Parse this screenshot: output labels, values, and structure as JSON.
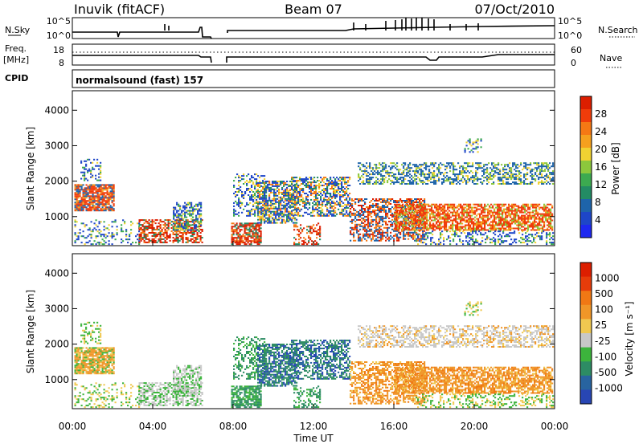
{
  "header": {
    "station": "Inuvik (fitACF)",
    "beam": "Beam 07",
    "date": "07/Oct/2010"
  },
  "strips": {
    "nsky_label": "N.Sky",
    "nsky_ticks": [
      "10^5",
      "10^0"
    ],
    "nsearch_label": "N.Search",
    "nsearch_ticks": [
      "10^5",
      "10^0"
    ],
    "freq_label_1": "Freq.",
    "freq_label_2": "[MHz]",
    "freq_ticks": [
      "18",
      "8"
    ],
    "nave_label": "Nave",
    "nave_ticks": [
      "60",
      "0"
    ],
    "cpid_label": "CPID",
    "cpid_value": "normalsound (fast) 157"
  },
  "chart_data": [
    {
      "type": "heatmap",
      "name": "power",
      "ylabel": "Slant Range [km]",
      "ylim": [
        180,
        4550
      ],
      "yticks": [
        1000,
        2000,
        3000,
        4000
      ],
      "colorbar_label": "Power [dB]",
      "colorbar_ticks": [
        4,
        8,
        12,
        16,
        20,
        24,
        28
      ],
      "colors": [
        "#1e28f0",
        "#1e46c8",
        "#1e64aa",
        "#238c64",
        "#3caa50",
        "#8cc83c",
        "#f0d232",
        "#f5a01e",
        "#f57814",
        "#f03c0a",
        "#dc1e00"
      ]
    },
    {
      "type": "heatmap",
      "name": "velocity",
      "ylabel": "Slant Range [km]",
      "ylim": [
        180,
        4550
      ],
      "yticks": [
        1000,
        2000,
        3000,
        4000
      ],
      "colorbar_label": "Velocity [m s⁻¹]",
      "colorbar_ticks": [
        1000,
        500,
        100,
        25,
        -25,
        -100,
        -500,
        -1000
      ],
      "colors": [
        "#2846b4",
        "#2864a0",
        "#2d8c64",
        "#3cb43c",
        "#c8c8c8",
        "#f0c850",
        "#f09628",
        "#f07814",
        "#e63c0a",
        "#dc1e00"
      ]
    }
  ],
  "xaxis": {
    "ticks": [
      "00:00",
      "04:00",
      "08:00",
      "12:00",
      "16:00",
      "20:00",
      "00:00"
    ],
    "label": "Time UT"
  }
}
